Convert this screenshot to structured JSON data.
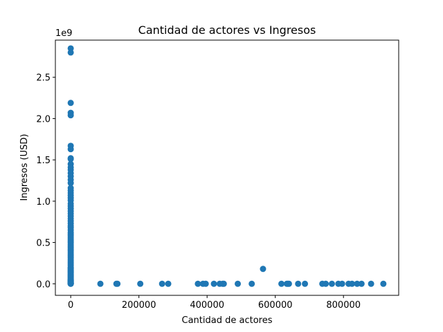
{
  "chart_data": {
    "type": "scatter",
    "title": "Cantidad de actores vs Ingresos",
    "xlabel": "Cantidad de actores",
    "ylabel": "Ingresos (USD)",
    "y_offset_text": "1e9",
    "xlim": [
      -45000,
      962000
    ],
    "ylim": [
      -0.14,
      2.95
    ],
    "x_ticks": [
      0,
      200000,
      400000,
      600000,
      800000
    ],
    "x_tick_labels": [
      "0",
      "200000",
      "400000",
      "600000",
      "800000"
    ],
    "y_ticks": [
      0.0,
      0.5,
      1.0,
      1.5,
      2.0,
      2.5
    ],
    "y_tick_labels": [
      "0.0",
      "0.5",
      "1.0",
      "1.5",
      "2.0",
      "2.5"
    ],
    "grid": false,
    "legend": null,
    "marker_color": "#1f77b4",
    "points": {
      "x": [
        0,
        0,
        0,
        0,
        0,
        0,
        0,
        0,
        0,
        0,
        0,
        0,
        0,
        0,
        0,
        0,
        0,
        0,
        0,
        0,
        0,
        0,
        0,
        0,
        0,
        0,
        0,
        0,
        0,
        0,
        0,
        0,
        0,
        0,
        0,
        0,
        0,
        0,
        0,
        0,
        0,
        0,
        0,
        0,
        0,
        0,
        0,
        0,
        0,
        0,
        0,
        0,
        0,
        0,
        0,
        0,
        0,
        0,
        0,
        0,
        0,
        0,
        0,
        0,
        0,
        0,
        0,
        0,
        0,
        0,
        0,
        0,
        0,
        0,
        0,
        0,
        0,
        0,
        0,
        0,
        0,
        0,
        0,
        0,
        0,
        0,
        87000,
        134000,
        137000,
        204000,
        268000,
        286000,
        373000,
        388000,
        396000,
        420000,
        437000,
        446000,
        449000,
        490000,
        531000,
        564000,
        618000,
        634000,
        637000,
        640000,
        667000,
        687000,
        738000,
        748000,
        766000,
        785000,
        796000,
        815000,
        825000,
        840000,
        853000,
        881000,
        917000
      ],
      "y": [
        2.85,
        2.8,
        2.19,
        2.07,
        2.04,
        1.67,
        1.63,
        1.52,
        1.51,
        1.45,
        1.41,
        1.38,
        1.34,
        1.3,
        1.26,
        1.22,
        1.16,
        1.13,
        1.1,
        1.07,
        1.04,
        1.01,
        0.97,
        0.94,
        0.91,
        0.88,
        0.85,
        0.82,
        0.79,
        0.76,
        0.73,
        0.7,
        0.68,
        0.65,
        0.62,
        0.6,
        0.58,
        0.56,
        0.54,
        0.52,
        0.5,
        0.48,
        0.46,
        0.44,
        0.42,
        0.4,
        0.38,
        0.36,
        0.34,
        0.32,
        0.3,
        0.28,
        0.26,
        0.24,
        0.22,
        0.2,
        0.19,
        0.18,
        0.17,
        0.16,
        0.15,
        0.14,
        0.13,
        0.12,
        0.11,
        0.1,
        0.09,
        0.08,
        0.07,
        0.06,
        0.05,
        0.045,
        0.04,
        0.035,
        0.03,
        0.025,
        0.02,
        0.015,
        0.012,
        0.009,
        0.006,
        0.004,
        0.002,
        0.001,
        0.0005,
        0.0,
        0,
        0,
        0,
        0,
        0,
        0,
        0,
        0,
        0,
        0,
        0,
        0,
        0,
        0,
        0,
        0.18,
        0,
        0,
        0,
        0,
        0,
        0,
        0,
        0,
        0,
        0,
        0,
        0,
        0,
        0,
        0,
        0,
        0
      ]
    }
  }
}
